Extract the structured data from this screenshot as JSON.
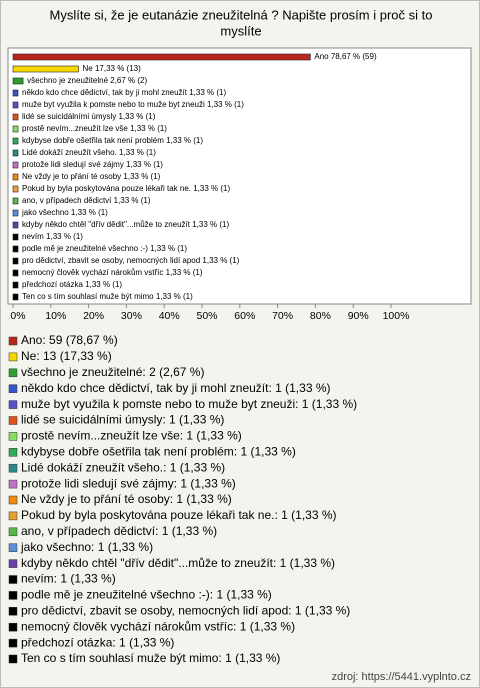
{
  "chart_data": {
    "type": "bar",
    "orientation": "horizontal",
    "title": [
      "Myslíte si, že je eutanázie zneužitelná ? Napište prosím i proč si to",
      "myslíte"
    ],
    "categories": [
      "Ano",
      "Ne",
      "všechno je zneužitelné",
      "někdo kdo chce dědictví, tak by ji mohl zneužít",
      "muže  byt využila k pomste nebo to muže byt zneuži",
      "lidé se suicidálními úmysly",
      "prostě nevím...zneužít lze vše",
      "kdybyse dobře ošetřila tak není problém",
      "Lidé dokáží zneužít všeho.",
      "protože lidi sledují své zájmy",
      "Ne vždy je to přání té osoby",
      "Pokud by byla poskytována pouze lékaři tak ne.",
      "ano, v případech dědictví",
      "jako všechno",
      "kdyby někdo chtěl \"dřív dědit\"...může to zneužít",
      "nevím",
      "podle mě je zneužitelné všechno :-)",
      "pro dědictví, zbavit se osoby, nemocných lidí apod",
      "nemocný člověk vychází  nárokům vstříc",
      "předchozí otázka",
      "Ten co s tím  souhlasí muže být mimo"
    ],
    "values": [
      78.67,
      17.33,
      2.67,
      1.33,
      1.33,
      1.33,
      1.33,
      1.33,
      1.33,
      1.33,
      1.33,
      1.33,
      1.33,
      1.33,
      1.33,
      1.33,
      1.33,
      1.33,
      1.33,
      1.33,
      1.33
    ],
    "value_labels": [
      "Ano 78,67 % (59)",
      "Ne 17,33 % (13)",
      "všechno je zneužitelné 2,67 % (2)",
      "někdo kdo chce dědictví, tak by ji mohl zneužít 1,33 % (1)",
      "muže  byt využila k pomste nebo to muže byt zneuži 1,33 % (1)",
      "lidé se suicidálními úmysly 1,33 % (1)",
      "prostě nevím...zneužít lze vše 1,33 % (1)",
      "kdybyse dobře ošetřila tak není problém 1,33 % (1)",
      "Lidé dokáží zneužít všeho. 1,33 % (1)",
      "protože lidi sledují své zájmy 1,33 % (1)",
      "Ne vždy je to přání té osoby 1,33 % (1)",
      "Pokud by byla poskytována pouze lékaři tak ne. 1,33 % (1)",
      "ano, v případech dědictví 1,33 % (1)",
      "jako všechno 1,33 % (1)",
      "kdyby někdo chtěl \"dřív dědit\"...může to zneužít 1,33 % (1)",
      "nevím 1,33 % (1)",
      "podle mě je zneužitelné všechno :-) 1,33 % (1)",
      "pro dědictví, zbavit se osoby, nemocných lidí apod 1,33 % (1)",
      "nemocný člověk vychází  nárokům vstříc 1,33 % (1)",
      "předchozí otázka 1,33 % (1)",
      "Ten co s tím  souhlasí muže být mimo 1,33 % (1)"
    ],
    "legend_labels": [
      "Ano: 59 (78,67 %)",
      "Ne: 13 (17,33 %)",
      "všechno je zneužitelné: 2 (2,67 %)",
      "někdo kdo chce dědictví, tak by ji mohl zneužít: 1 (1,33 %)",
      "muže  byt využila k pomste nebo to muže byt zneuži: 1 (1,33 %)",
      "lidé se suicidálními úmysly: 1 (1,33 %)",
      "prostě nevím...zneužít lze vše: 1 (1,33 %)",
      "kdybyse dobře ošetřila tak není problém: 1 (1,33 %)",
      "Lidé dokáží zneužít všeho.: 1 (1,33 %)",
      "protože lidi sledují své zájmy: 1 (1,33 %)",
      "Ne vždy je to přání té osoby: 1 (1,33 %)",
      "Pokud by byla poskytována pouze lékaři tak ne.: 1 (1,33 %)",
      "ano, v případech dědictví: 1 (1,33 %)",
      "jako všechno: 1 (1,33 %)",
      "kdyby někdo chtěl \"dřív dědit\"...může to zneužít: 1 (1,33 %)",
      "nevím: 1 (1,33 %)",
      "podle mě je zneužitelné všechno :-): 1 (1,33 %)",
      "pro dědictví, zbavit se osoby, nemocných lidí apod: 1 (1,33 %)",
      "nemocný člověk vychází  nárokům vstříc: 1 (1,33 %)",
      "předchozí otázka: 1 (1,33 %)",
      "Ten co s tím  souhlasí muže být mimo: 1 (1,33 %)"
    ],
    "colors": [
      "#b8271c",
      "#f5d800",
      "#2e9e2e",
      "#3355cc",
      "#5a4fc8",
      "#e0521b",
      "#88dd66",
      "#33aa55",
      "#2a8a8a",
      "#c070c8",
      "#f08a10",
      "#e8a030",
      "#55b84a",
      "#5b8ed8",
      "#6a3fa8",
      "#000000",
      "#000000",
      "#000000",
      "#000000",
      "#000000",
      "#000000"
    ],
    "xlim": [
      0,
      100
    ],
    "xticks": [
      {
        "value": 0,
        "label": "0%"
      },
      {
        "value": 10,
        "label": "10%"
      },
      {
        "value": 20,
        "label": "20%"
      },
      {
        "value": 30,
        "label": "30%"
      },
      {
        "value": 40,
        "label": "40%"
      },
      {
        "value": 50,
        "label": "50%"
      },
      {
        "value": 60,
        "label": "60%"
      },
      {
        "value": 70,
        "label": "70%"
      },
      {
        "value": 80,
        "label": "80%"
      },
      {
        "value": 90,
        "label": "90%"
      },
      {
        "value": 100,
        "label": "100%"
      }
    ],
    "source": "zdroj: https://5441.vyplnto.cz"
  }
}
